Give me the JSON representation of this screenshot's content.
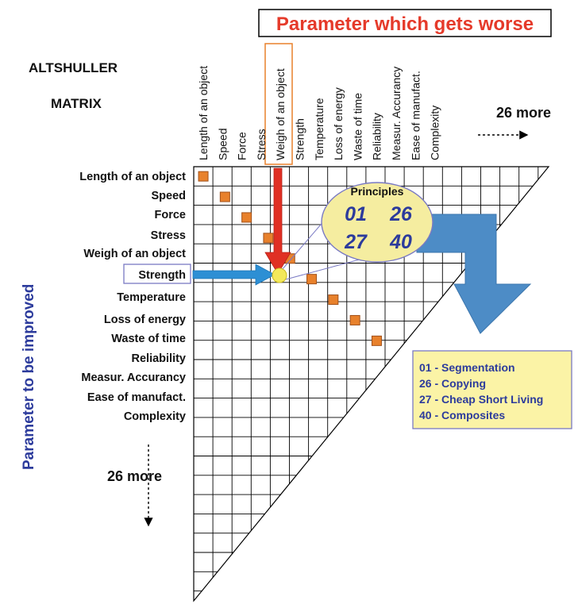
{
  "header": {
    "worse_title": "Parameter which gets worse",
    "title_line1": "ALTSHULLER",
    "title_line2": "MATRIX",
    "more_columns": "26 more"
  },
  "side": {
    "improved_label": "Parameter to be improved",
    "more_rows": "26 more"
  },
  "parameters": [
    "Length of an object",
    "Speed",
    "Force",
    "Stress",
    "Weigh of an object",
    "Strength",
    "Temperature",
    "Loss of energy",
    "Waste of time",
    "Reliability",
    "Measur. Accurancy",
    "Ease of manufact.",
    "Complexity"
  ],
  "column_parameters": [
    "Length of an object",
    "Speed",
    "Force",
    "Stress",
    "Weigh of an object",
    "Strength",
    "Temperature",
    "Loss of energy",
    "Waste of time",
    "Reliability",
    "Measur. Accurancy",
    "Ease of manufact.",
    "Complexity"
  ],
  "highlight": {
    "improved": "Strength",
    "worse": "Weigh of an object"
  },
  "principles": {
    "title": "Principles",
    "codes": [
      "01",
      "26",
      "27",
      "40"
    ]
  },
  "legend": {
    "items": [
      "01 - Segmentation",
      "26 - Copying",
      "27 - Cheap Short Living",
      "40 - Composites"
    ]
  },
  "colors": {
    "worse_title": "#e53a2a",
    "improved_label": "#2c3b9c",
    "diagonal_cell": "#e8812c",
    "down_arrow": "#e03024",
    "right_arrow": "#2d8fd4",
    "big_arrow": "#4d8cc6",
    "principles_fill": "#f5eda0",
    "principles_text": "#2c3b9c",
    "legend_fill": "#fbf3a6",
    "legend_text": "#2c3b9c",
    "intersection": "#f3e85a"
  }
}
